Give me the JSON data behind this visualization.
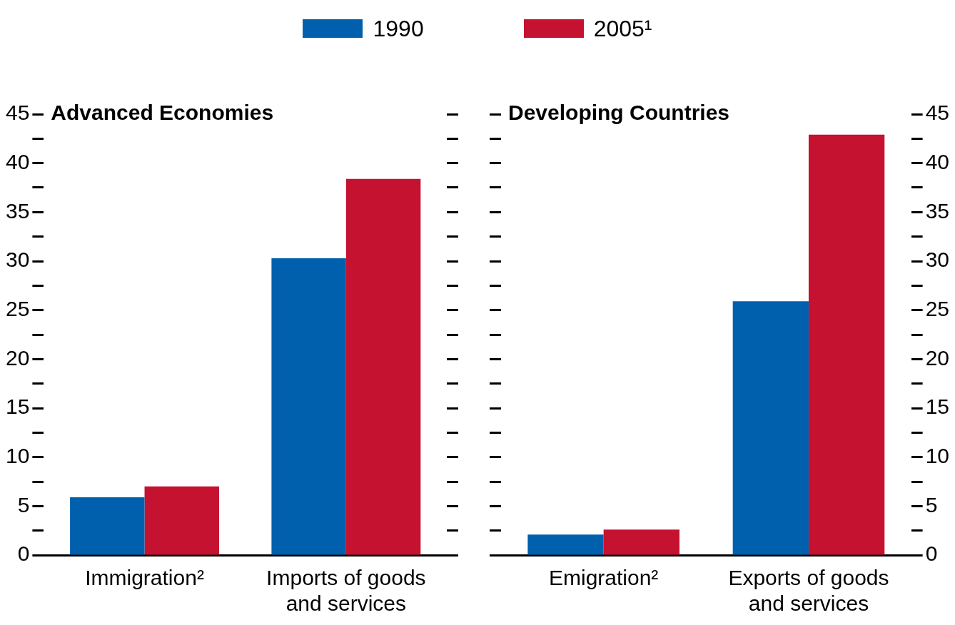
{
  "chart_data": [
    {
      "type": "bar",
      "title": "Advanced Economies",
      "categories": [
        "Immigration²",
        "Imports of goods and services"
      ],
      "series": [
        {
          "name": "1990",
          "color": "#0060ad",
          "values": [
            5.9,
            30.3
          ]
        },
        {
          "name": "2005¹",
          "color": "#c41230",
          "values": [
            7.0,
            38.4
          ]
        }
      ],
      "ylim": [
        0,
        45
      ],
      "yticks": [
        0,
        {
          "value": 2.5,
          "label": null
        },
        5,
        {
          "value": 7.5,
          "label": null
        },
        10,
        {
          "value": 12.5,
          "label": null
        },
        15,
        {
          "value": 17.5,
          "label": null
        },
        20,
        {
          "value": 22.5,
          "label": null
        },
        25,
        {
          "value": 27.5,
          "label": null
        },
        30,
        {
          "value": 32.5,
          "label": null
        },
        35,
        {
          "value": 37.5,
          "label": null
        },
        40,
        {
          "value": 42.5,
          "label": null
        },
        45
      ],
      "grid": false,
      "legend": "top"
    },
    {
      "type": "bar",
      "title": "Developing Countries",
      "categories": [
        "Emigration²",
        "Exports of goods and services"
      ],
      "series": [
        {
          "color": "#0060ad",
          "values": [
            2.1,
            25.9
          ]
        },
        {
          "color": "#c41230",
          "values": [
            2.6,
            42.9
          ]
        }
      ],
      "ylim": [
        0,
        45
      ],
      "yticks": [
        0,
        {
          "value": 2.5,
          "label": null
        },
        5,
        {
          "value": 7.5,
          "label": null
        },
        10,
        {
          "value": 12.5,
          "label": null
        },
        15,
        {
          "value": 17.5,
          "label": null
        },
        20,
        {
          "value": 22.5,
          "label": null
        },
        25,
        {
          "value": 27.5,
          "label": null
        },
        30,
        {
          "value": 32.5,
          "label": null
        },
        35,
        {
          "value": 37.5,
          "label": null
        },
        40,
        {
          "value": 42.5,
          "label": null
        },
        45
      ],
      "grid": false,
      "legend": false
    }
  ]
}
